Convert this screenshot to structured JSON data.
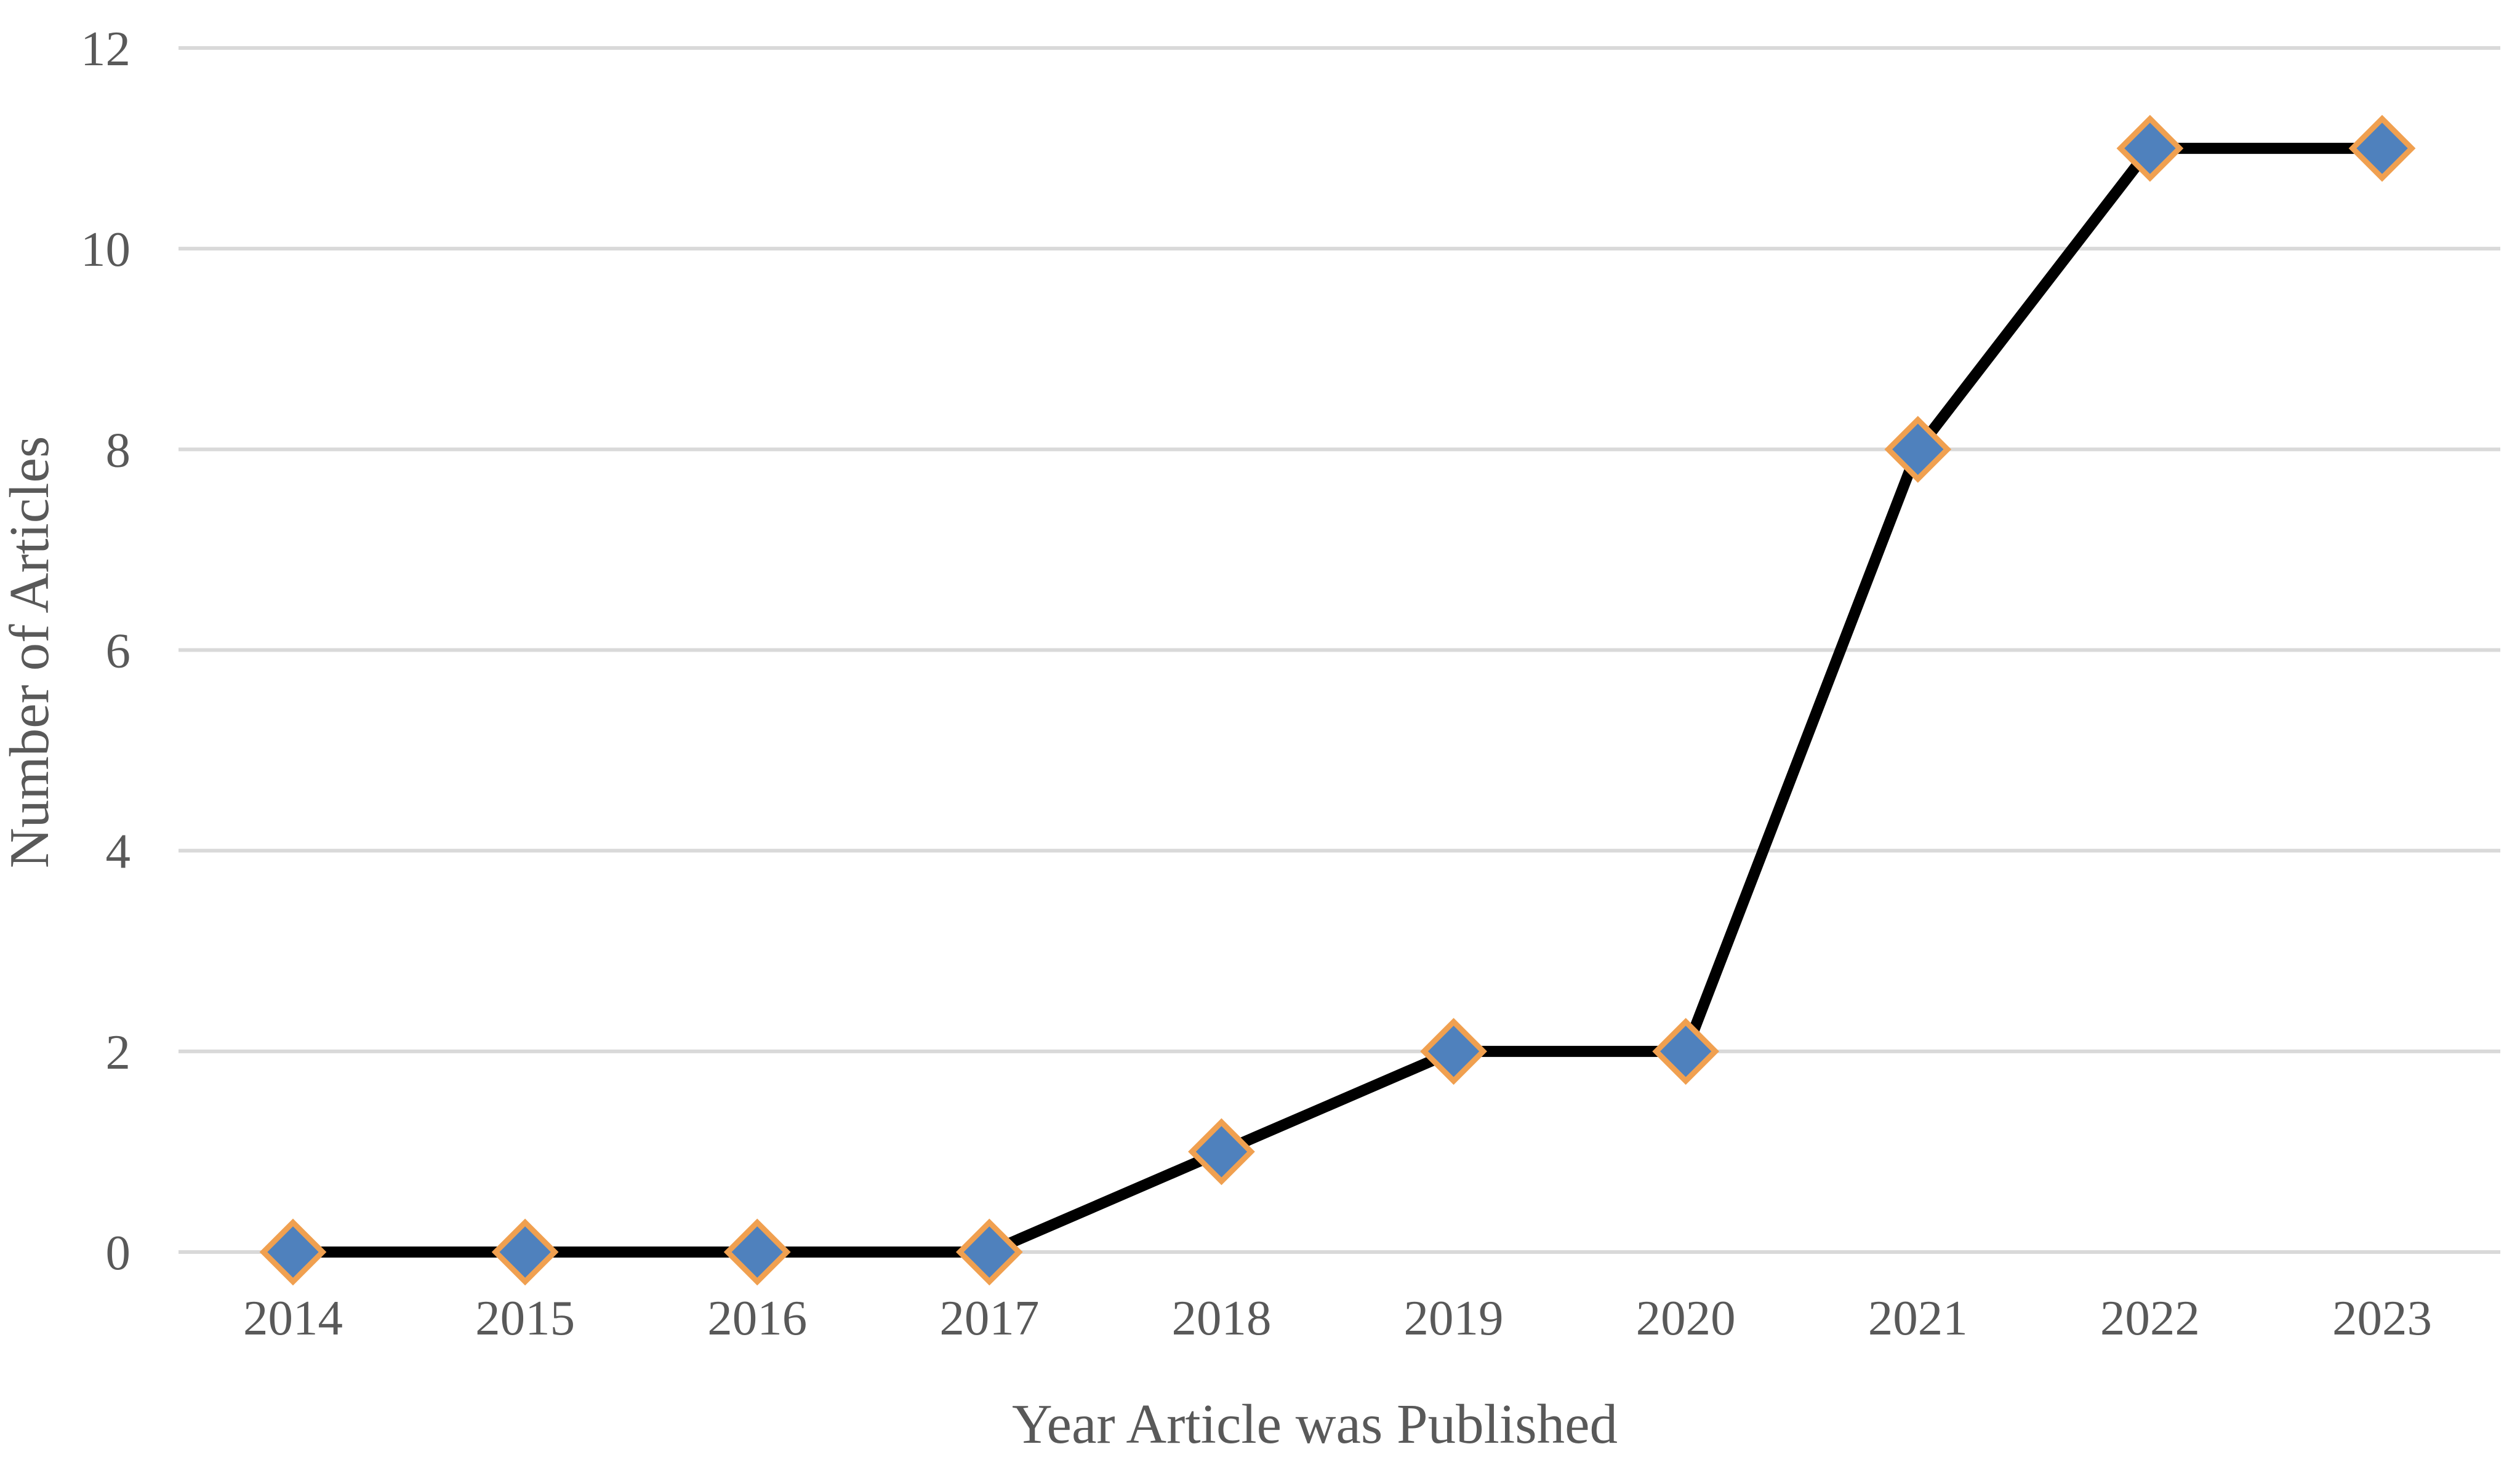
{
  "chart_data": {
    "type": "line",
    "title": "",
    "xlabel": "Year Article was Published",
    "ylabel": "Number of Articles",
    "categories": [
      "2014",
      "2015",
      "2016",
      "2017",
      "2018",
      "2019",
      "2020",
      "2021",
      "2022",
      "2023"
    ],
    "series": [
      {
        "values": [
          0,
          0,
          0,
          0,
          1,
          2,
          2,
          8,
          11,
          11
        ]
      }
    ],
    "ylim": [
      0,
      12
    ],
    "yticks": [
      "0",
      "2",
      "4",
      "6",
      "8",
      "10",
      "12"
    ],
    "grid": true,
    "legend": "none",
    "colors": {
      "line": "#000000",
      "marker_fill": "#4f81bd",
      "marker_edge": "#f0a050",
      "grid": "#d9d9d9",
      "text": "#595959"
    },
    "marker": "diamond"
  }
}
